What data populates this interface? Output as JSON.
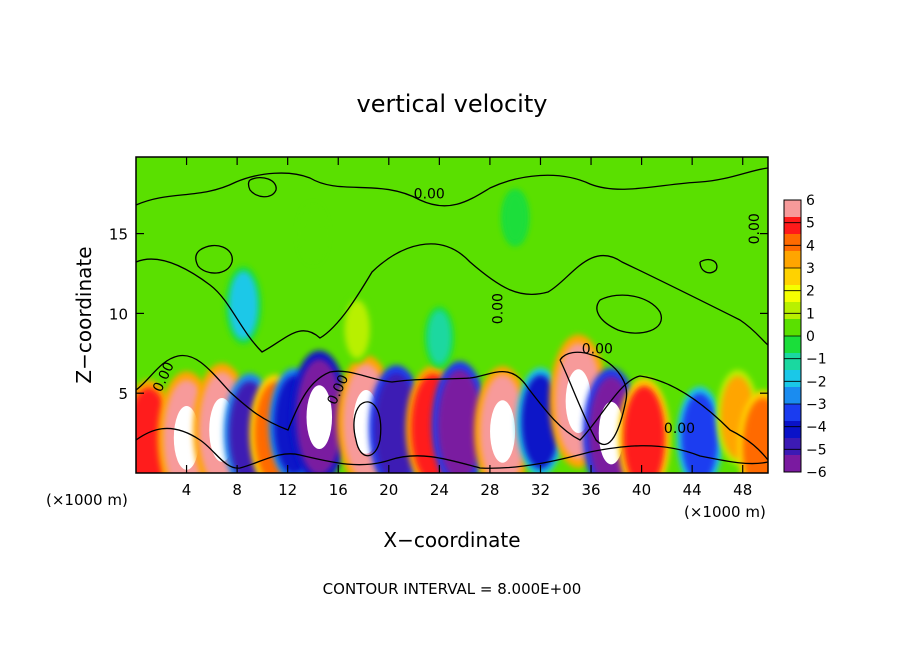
{
  "chart_data": {
    "type": "heatmap",
    "title": "vertical velocity",
    "xlabel": "X−coordinate",
    "ylabel": "Z−coordinate",
    "x_unit_left": "(×1000 m)",
    "x_unit_right": "(×1000 m)",
    "footer": "CONTOUR INTERVAL = 8.000E+00",
    "xlim": [
      0,
      50
    ],
    "ylim": [
      0,
      19.8
    ],
    "x_ticks": [
      4,
      8,
      12,
      16,
      20,
      24,
      28,
      32,
      36,
      40,
      44,
      48
    ],
    "x_tick_labels": [
      "4",
      "8",
      "12",
      "16",
      "20",
      "24",
      "28",
      "32",
      "36",
      "40",
      "44",
      "48"
    ],
    "y_ticks": [
      5,
      10,
      15
    ],
    "y_tick_labels": [
      "5",
      "10",
      "15"
    ],
    "contour_labels": [
      {
        "text": "0.00",
        "x": 23.2,
        "z": 17.2
      },
      {
        "text": "0.00",
        "x": 29.0,
        "z": 10.3
      },
      {
        "text": "0.00",
        "x": 2.5,
        "z": 5.9
      },
      {
        "text": "0.00",
        "x": 16.3,
        "z": 5.1
      },
      {
        "text": "0.00",
        "x": 36.5,
        "z": 7.5
      },
      {
        "text": "0.00",
        "x": 49.3,
        "z": 15.3
      },
      {
        "text": "0.00",
        "x": 43.0,
        "z": 2.5
      }
    ],
    "colorbar": {
      "ticks": [
        "6",
        "5",
        "4",
        "3",
        "2",
        "1",
        "0",
        "−1",
        "−2",
        "−3",
        "−4",
        "−5",
        "−6"
      ],
      "colors": [
        "#f79a9a",
        "#ff1a1a",
        "#ff6a00",
        "#ffa500",
        "#ffd200",
        "#f5ff00",
        "#b8f000",
        "#5ae000",
        "#1ade3a",
        "#1ad8a0",
        "#1ac8e8",
        "#1a8cf0",
        "#1a3cf0",
        "#0a12c8",
        "#3c1ab4",
        "#7a1aa0"
      ],
      "range": [
        -6,
        6
      ]
    },
    "cells": [
      {
        "x": 1.0,
        "z": 2.0,
        "v": 5.2
      },
      {
        "x": 4.0,
        "z": 2.2,
        "v": 6.0
      },
      {
        "x": 6.8,
        "z": 2.7,
        "v": 6.0
      },
      {
        "x": 9.0,
        "z": 2.5,
        "v": -5.0
      },
      {
        "x": 11.0,
        "z": 2.5,
        "v": 4.8
      },
      {
        "x": 12.5,
        "z": 3.0,
        "v": -4.6
      },
      {
        "x": 14.5,
        "z": 3.5,
        "v": -6.0
      },
      {
        "x": 18.2,
        "z": 3.2,
        "v": 6.0
      },
      {
        "x": 20.6,
        "z": 2.8,
        "v": -5.5
      },
      {
        "x": 23.5,
        "z": 2.8,
        "v": 5.4
      },
      {
        "x": 25.6,
        "z": 3.0,
        "v": -5.6
      },
      {
        "x": 29.0,
        "z": 2.6,
        "v": 5.8
      },
      {
        "x": 32.0,
        "z": 3.2,
        "v": -4.2
      },
      {
        "x": 35.0,
        "z": 4.5,
        "v": 6.0
      },
      {
        "x": 37.6,
        "z": 2.5,
        "v": -5.8
      },
      {
        "x": 40.2,
        "z": 2.2,
        "v": 5.0
      },
      {
        "x": 44.6,
        "z": 2.2,
        "v": -3.8
      },
      {
        "x": 47.6,
        "z": 3.5,
        "v": 3.2
      },
      {
        "x": 49.6,
        "z": 1.6,
        "v": 4.6
      },
      {
        "x": 8.5,
        "z": 10.5,
        "v": -2.0
      },
      {
        "x": 17.5,
        "z": 9.0,
        "v": 1.2
      },
      {
        "x": 24.0,
        "z": 8.5,
        "v": -0.8
      },
      {
        "x": 14.0,
        "z": 15.0,
        "v": 0.6
      },
      {
        "x": 30.0,
        "z": 16.0,
        "v": -0.5
      }
    ]
  }
}
